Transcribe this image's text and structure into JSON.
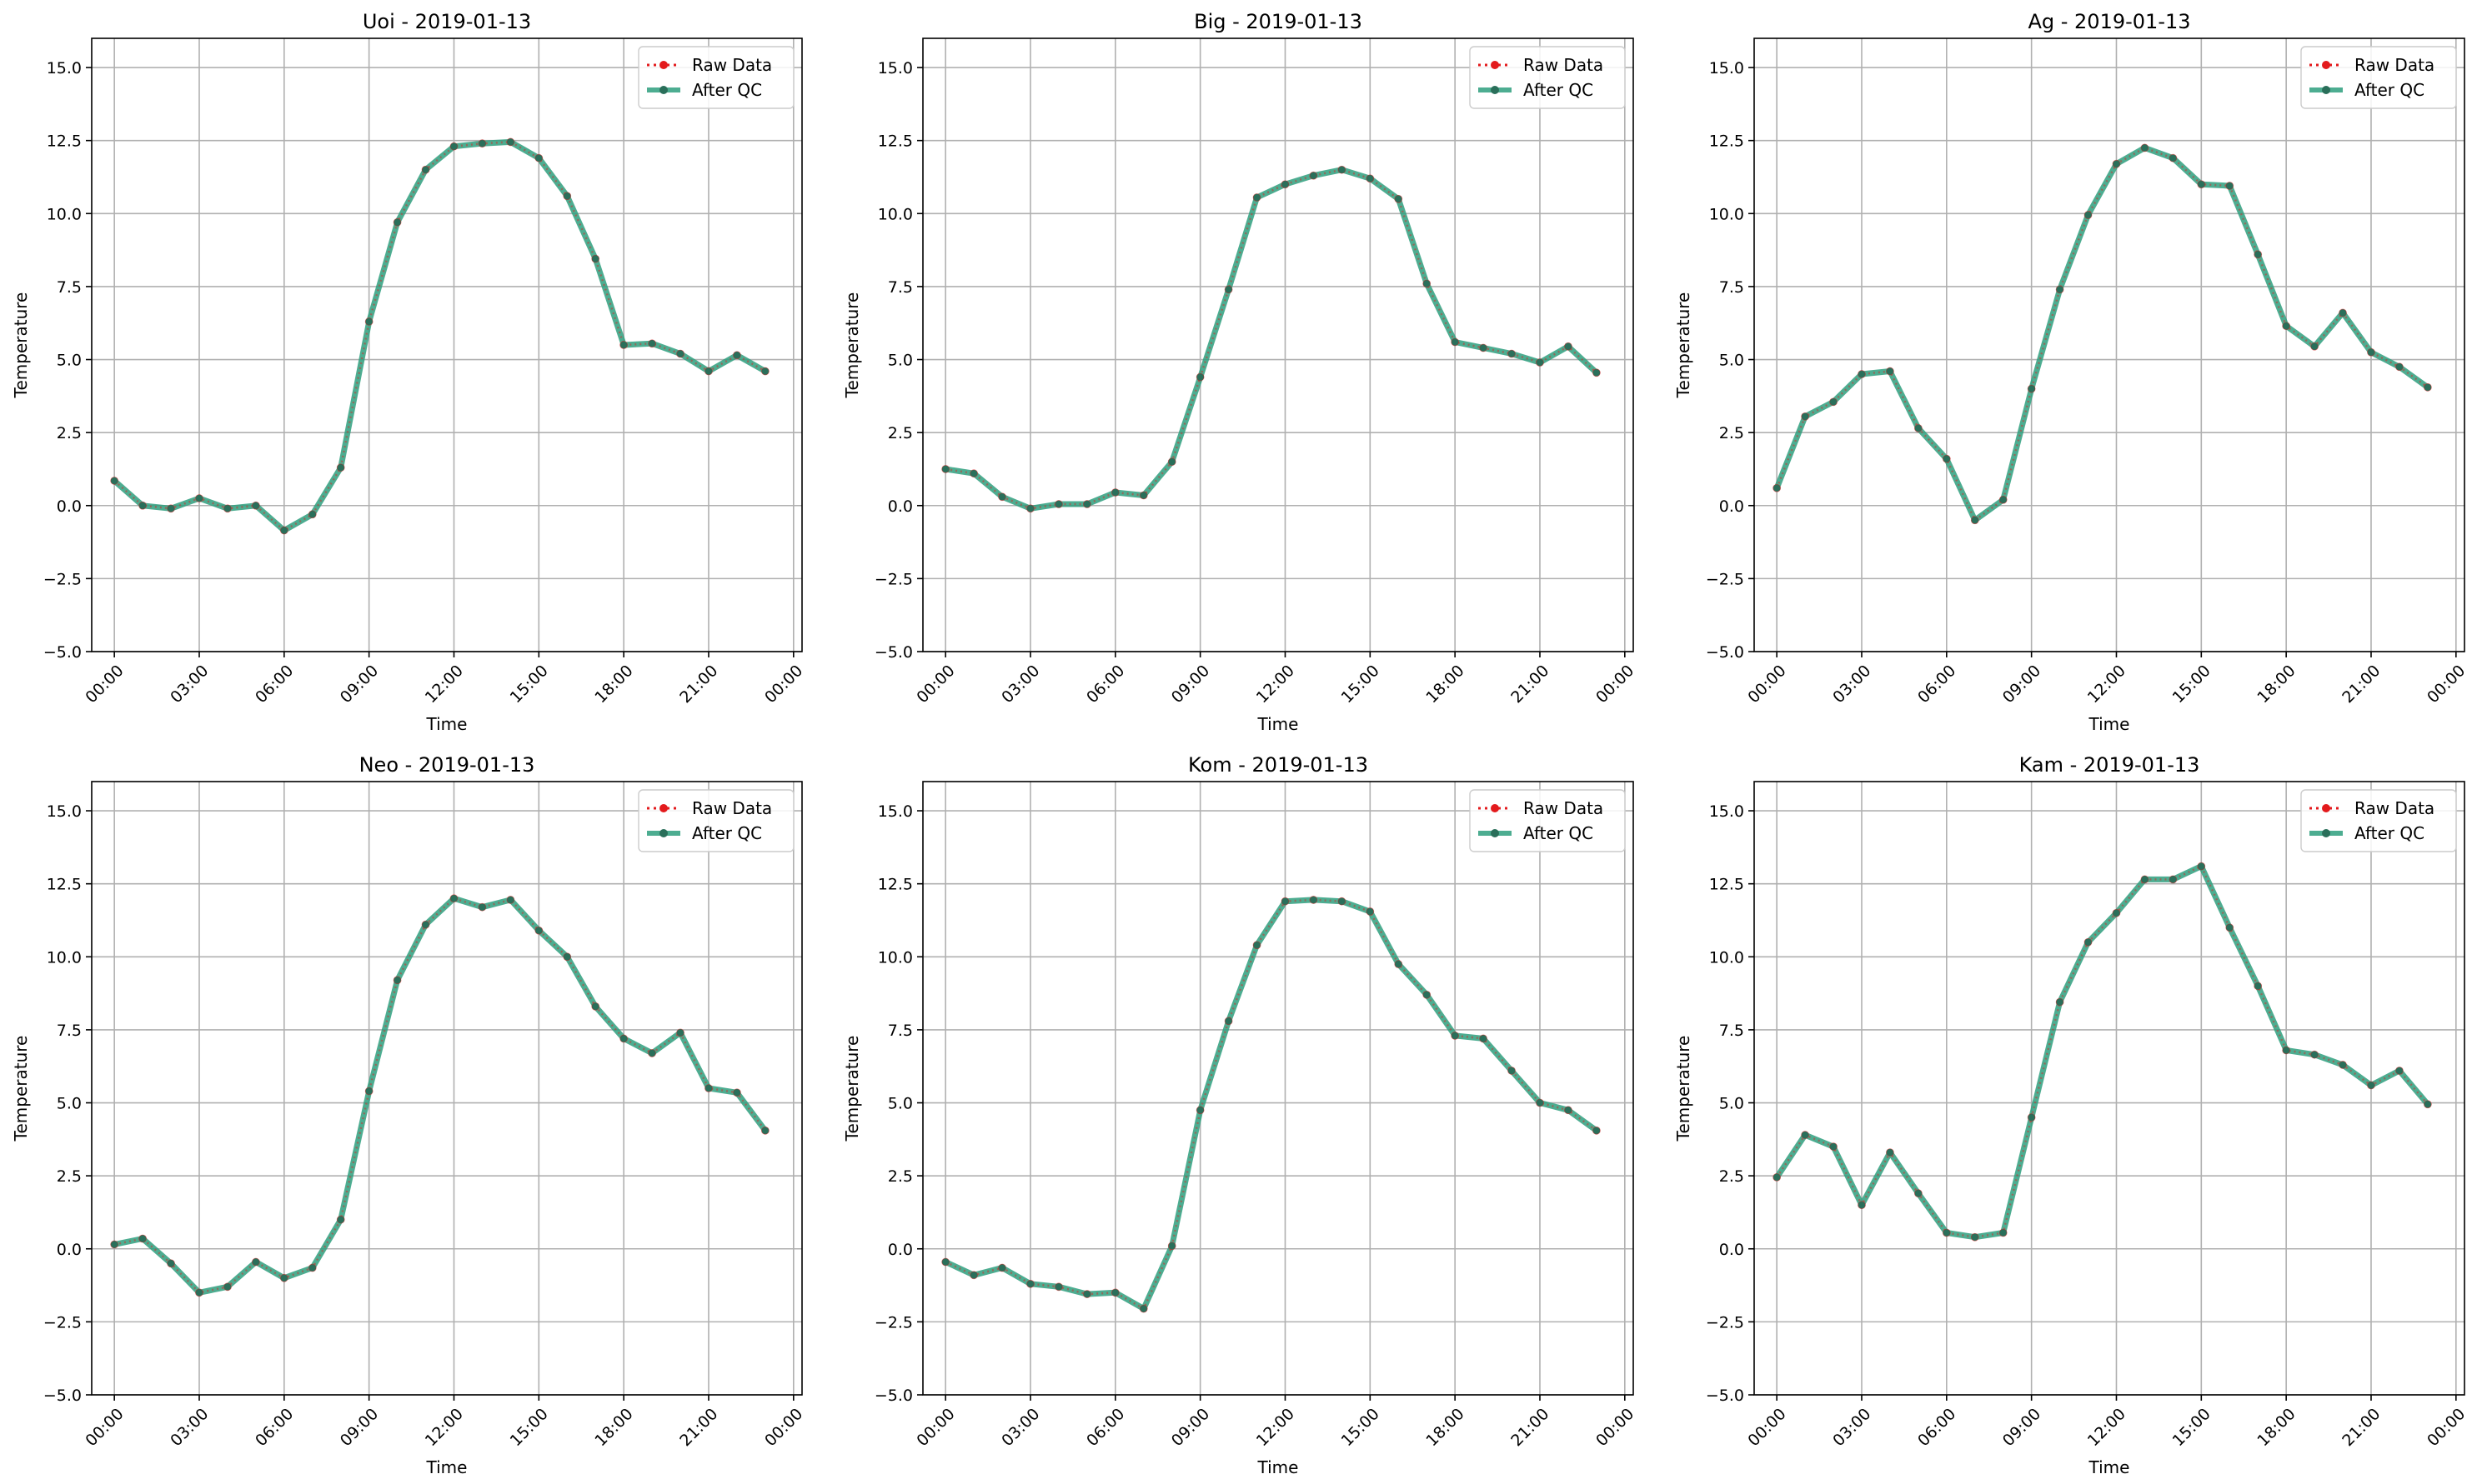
{
  "figure": {
    "colors": {
      "raw": "#e31a1c",
      "qc": "#2e9f7e",
      "grid": "#b0b0b0",
      "marker": "#2a6f5a"
    }
  },
  "chart_data": [
    {
      "type": "line",
      "title": "Uoi - 2019-01-13",
      "xlabel": "Time",
      "ylabel": "Temperature",
      "ylim": [
        -5.0,
        16.0
      ],
      "xlim_hours": [
        -0.8,
        24.3
      ],
      "x_hours": [
        0,
        1,
        2,
        3,
        4,
        5,
        6,
        7,
        8,
        9,
        10,
        11,
        12,
        13,
        14,
        15,
        16,
        17,
        18,
        19,
        20,
        21,
        22,
        23
      ],
      "x_tick_labels": [
        "00:00",
        "03:00",
        "06:00",
        "09:00",
        "12:00",
        "15:00",
        "18:00",
        "21:00",
        "00:00"
      ],
      "y_tick_labels": [
        "−5.0",
        "−2.5",
        "0.0",
        "2.5",
        "5.0",
        "7.5",
        "10.0",
        "12.5",
        "15.0"
      ],
      "grid": true,
      "legend_position": "upper right",
      "series": [
        {
          "name": "Raw Data",
          "values": [
            0.85,
            0.0,
            -0.1,
            0.25,
            -0.1,
            0.0,
            -0.85,
            -0.3,
            1.3,
            6.3,
            9.7,
            11.5,
            12.3,
            12.4,
            12.45,
            11.9,
            10.6,
            8.45,
            5.5,
            5.55,
            5.2,
            4.6,
            5.15,
            4.6
          ]
        },
        {
          "name": "After QC",
          "values": [
            0.85,
            0.0,
            -0.1,
            0.25,
            -0.1,
            0.0,
            -0.85,
            -0.3,
            1.3,
            6.3,
            9.7,
            11.5,
            12.3,
            12.4,
            12.45,
            11.9,
            10.6,
            8.45,
            5.5,
            5.55,
            5.2,
            4.6,
            5.15,
            4.6
          ]
        }
      ]
    },
    {
      "type": "line",
      "title": "Big - 2019-01-13",
      "xlabel": "Time",
      "ylabel": "Temperature",
      "ylim": [
        -5.0,
        16.0
      ],
      "xlim_hours": [
        -0.8,
        24.3
      ],
      "x_hours": [
        0,
        1,
        2,
        3,
        4,
        5,
        6,
        7,
        8,
        9,
        10,
        11,
        12,
        13,
        14,
        15,
        16,
        17,
        18,
        19,
        20,
        21,
        22,
        23
      ],
      "x_tick_labels": [
        "00:00",
        "03:00",
        "06:00",
        "09:00",
        "12:00",
        "15:00",
        "18:00",
        "21:00",
        "00:00"
      ],
      "y_tick_labels": [
        "−5.0",
        "−2.5",
        "0.0",
        "2.5",
        "5.0",
        "7.5",
        "10.0",
        "12.5",
        "15.0"
      ],
      "grid": true,
      "legend_position": "upper right",
      "series": [
        {
          "name": "Raw Data",
          "values": [
            1.25,
            1.1,
            0.3,
            -0.1,
            0.05,
            0.05,
            0.45,
            0.35,
            1.5,
            4.4,
            7.4,
            10.55,
            11.0,
            11.3,
            11.5,
            11.2,
            10.5,
            7.6,
            5.6,
            5.4,
            5.2,
            4.9,
            5.45,
            4.55
          ]
        },
        {
          "name": "After QC",
          "values": [
            1.25,
            1.1,
            0.3,
            -0.1,
            0.05,
            0.05,
            0.45,
            0.35,
            1.5,
            4.4,
            7.4,
            10.55,
            11.0,
            11.3,
            11.5,
            11.2,
            10.5,
            7.6,
            5.6,
            5.4,
            5.2,
            4.9,
            5.45,
            4.55
          ]
        }
      ]
    },
    {
      "type": "line",
      "title": "Ag - 2019-01-13",
      "xlabel": "Time",
      "ylabel": "Temperature",
      "ylim": [
        -5.0,
        16.0
      ],
      "xlim_hours": [
        -0.8,
        24.3
      ],
      "x_hours": [
        0,
        1,
        2,
        3,
        4,
        5,
        6,
        7,
        8,
        9,
        10,
        11,
        12,
        13,
        14,
        15,
        16,
        17,
        18,
        19,
        20,
        21,
        22,
        23
      ],
      "x_tick_labels": [
        "00:00",
        "03:00",
        "06:00",
        "09:00",
        "12:00",
        "15:00",
        "18:00",
        "21:00",
        "00:00"
      ],
      "y_tick_labels": [
        "−5.0",
        "−2.5",
        "0.0",
        "2.5",
        "5.0",
        "7.5",
        "10.0",
        "12.5",
        "15.0"
      ],
      "grid": true,
      "legend_position": "upper right",
      "series": [
        {
          "name": "Raw Data",
          "values": [
            0.6,
            3.05,
            3.55,
            4.5,
            4.6,
            2.65,
            1.6,
            -0.5,
            0.2,
            4.0,
            7.4,
            9.95,
            11.7,
            12.25,
            11.9,
            11.0,
            10.95,
            8.6,
            6.15,
            5.45,
            6.6,
            5.25,
            4.75,
            4.05
          ]
        },
        {
          "name": "After QC",
          "values": [
            0.6,
            3.05,
            3.55,
            4.5,
            4.6,
            2.65,
            1.6,
            -0.5,
            0.2,
            4.0,
            7.4,
            9.95,
            11.7,
            12.25,
            11.9,
            11.0,
            10.95,
            8.6,
            6.15,
            5.45,
            6.6,
            5.25,
            4.75,
            4.05
          ]
        }
      ]
    },
    {
      "type": "line",
      "title": "Neo - 2019-01-13",
      "xlabel": "Time",
      "ylabel": "Temperature",
      "ylim": [
        -5.0,
        16.0
      ],
      "xlim_hours": [
        -0.8,
        24.3
      ],
      "x_hours": [
        0,
        1,
        2,
        3,
        4,
        5,
        6,
        7,
        8,
        9,
        10,
        11,
        12,
        13,
        14,
        15,
        16,
        17,
        18,
        19,
        20,
        21,
        22,
        23
      ],
      "x_tick_labels": [
        "00:00",
        "03:00",
        "06:00",
        "09:00",
        "12:00",
        "15:00",
        "18:00",
        "21:00",
        "00:00"
      ],
      "y_tick_labels": [
        "−5.0",
        "−2.5",
        "0.0",
        "2.5",
        "5.0",
        "7.5",
        "10.0",
        "12.5",
        "15.0"
      ],
      "grid": true,
      "legend_position": "upper right",
      "series": [
        {
          "name": "Raw Data",
          "values": [
            0.15,
            0.35,
            -0.5,
            -1.5,
            -1.3,
            -0.45,
            -1.0,
            -0.65,
            1.0,
            5.4,
            9.2,
            11.1,
            12.0,
            11.7,
            11.95,
            10.9,
            10.0,
            8.3,
            7.2,
            6.7,
            7.4,
            5.5,
            5.35,
            4.05
          ]
        },
        {
          "name": "After QC",
          "values": [
            0.15,
            0.35,
            -0.5,
            -1.5,
            -1.3,
            -0.45,
            -1.0,
            -0.65,
            1.0,
            5.4,
            9.2,
            11.1,
            12.0,
            11.7,
            11.95,
            10.9,
            10.0,
            8.3,
            7.2,
            6.7,
            7.4,
            5.5,
            5.35,
            4.05
          ]
        }
      ]
    },
    {
      "type": "line",
      "title": "Kom - 2019-01-13",
      "xlabel": "Time",
      "ylabel": "Temperature",
      "ylim": [
        -5.0,
        16.0
      ],
      "xlim_hours": [
        -0.8,
        24.3
      ],
      "x_hours": [
        0,
        1,
        2,
        3,
        4,
        5,
        6,
        7,
        8,
        9,
        10,
        11,
        12,
        13,
        14,
        15,
        16,
        17,
        18,
        19,
        20,
        21,
        22,
        23
      ],
      "x_tick_labels": [
        "00:00",
        "03:00",
        "06:00",
        "09:00",
        "12:00",
        "15:00",
        "18:00",
        "21:00",
        "00:00"
      ],
      "y_tick_labels": [
        "−5.0",
        "−2.5",
        "0.0",
        "2.5",
        "5.0",
        "7.5",
        "10.0",
        "12.5",
        "15.0"
      ],
      "grid": true,
      "legend_position": "upper right",
      "series": [
        {
          "name": "Raw Data",
          "values": [
            -0.45,
            -0.9,
            -0.65,
            -1.2,
            -1.3,
            -1.55,
            -1.5,
            -2.05,
            0.1,
            4.75,
            7.8,
            10.4,
            11.9,
            11.95,
            11.9,
            11.55,
            9.75,
            8.7,
            7.3,
            7.2,
            6.1,
            5.0,
            4.75,
            4.05
          ]
        },
        {
          "name": "After QC",
          "values": [
            -0.45,
            -0.9,
            -0.65,
            -1.2,
            -1.3,
            -1.55,
            -1.5,
            -2.05,
            0.1,
            4.75,
            7.8,
            10.4,
            11.9,
            11.95,
            11.9,
            11.55,
            9.75,
            8.7,
            7.3,
            7.2,
            6.1,
            5.0,
            4.75,
            4.05
          ]
        }
      ]
    },
    {
      "type": "line",
      "title": "Kam - 2019-01-13",
      "xlabel": "Time",
      "ylabel": "Temperature",
      "ylim": [
        -5.0,
        16.0
      ],
      "xlim_hours": [
        -0.8,
        24.3
      ],
      "x_hours": [
        0,
        1,
        2,
        3,
        4,
        5,
        6,
        7,
        8,
        9,
        10,
        11,
        12,
        13,
        14,
        15,
        16,
        17,
        18,
        19,
        20,
        21,
        22,
        23
      ],
      "x_tick_labels": [
        "00:00",
        "03:00",
        "06:00",
        "09:00",
        "12:00",
        "15:00",
        "18:00",
        "21:00",
        "00:00"
      ],
      "y_tick_labels": [
        "−5.0",
        "−2.5",
        "0.0",
        "2.5",
        "5.0",
        "7.5",
        "10.0",
        "12.5",
        "15.0"
      ],
      "grid": true,
      "legend_position": "upper right",
      "series": [
        {
          "name": "Raw Data",
          "values": [
            2.45,
            3.9,
            3.5,
            1.5,
            3.3,
            1.9,
            0.55,
            0.4,
            0.55,
            4.5,
            8.45,
            10.5,
            11.5,
            12.65,
            12.65,
            13.1,
            11.0,
            9.0,
            6.8,
            6.65,
            6.3,
            5.6,
            6.1,
            4.95
          ]
        },
        {
          "name": "After QC",
          "values": [
            2.45,
            3.9,
            3.5,
            1.5,
            3.3,
            1.9,
            0.55,
            0.4,
            0.55,
            4.5,
            8.45,
            10.5,
            11.5,
            12.65,
            12.65,
            13.1,
            11.0,
            9.0,
            6.8,
            6.65,
            6.3,
            5.6,
            6.1,
            4.95
          ]
        }
      ]
    }
  ]
}
